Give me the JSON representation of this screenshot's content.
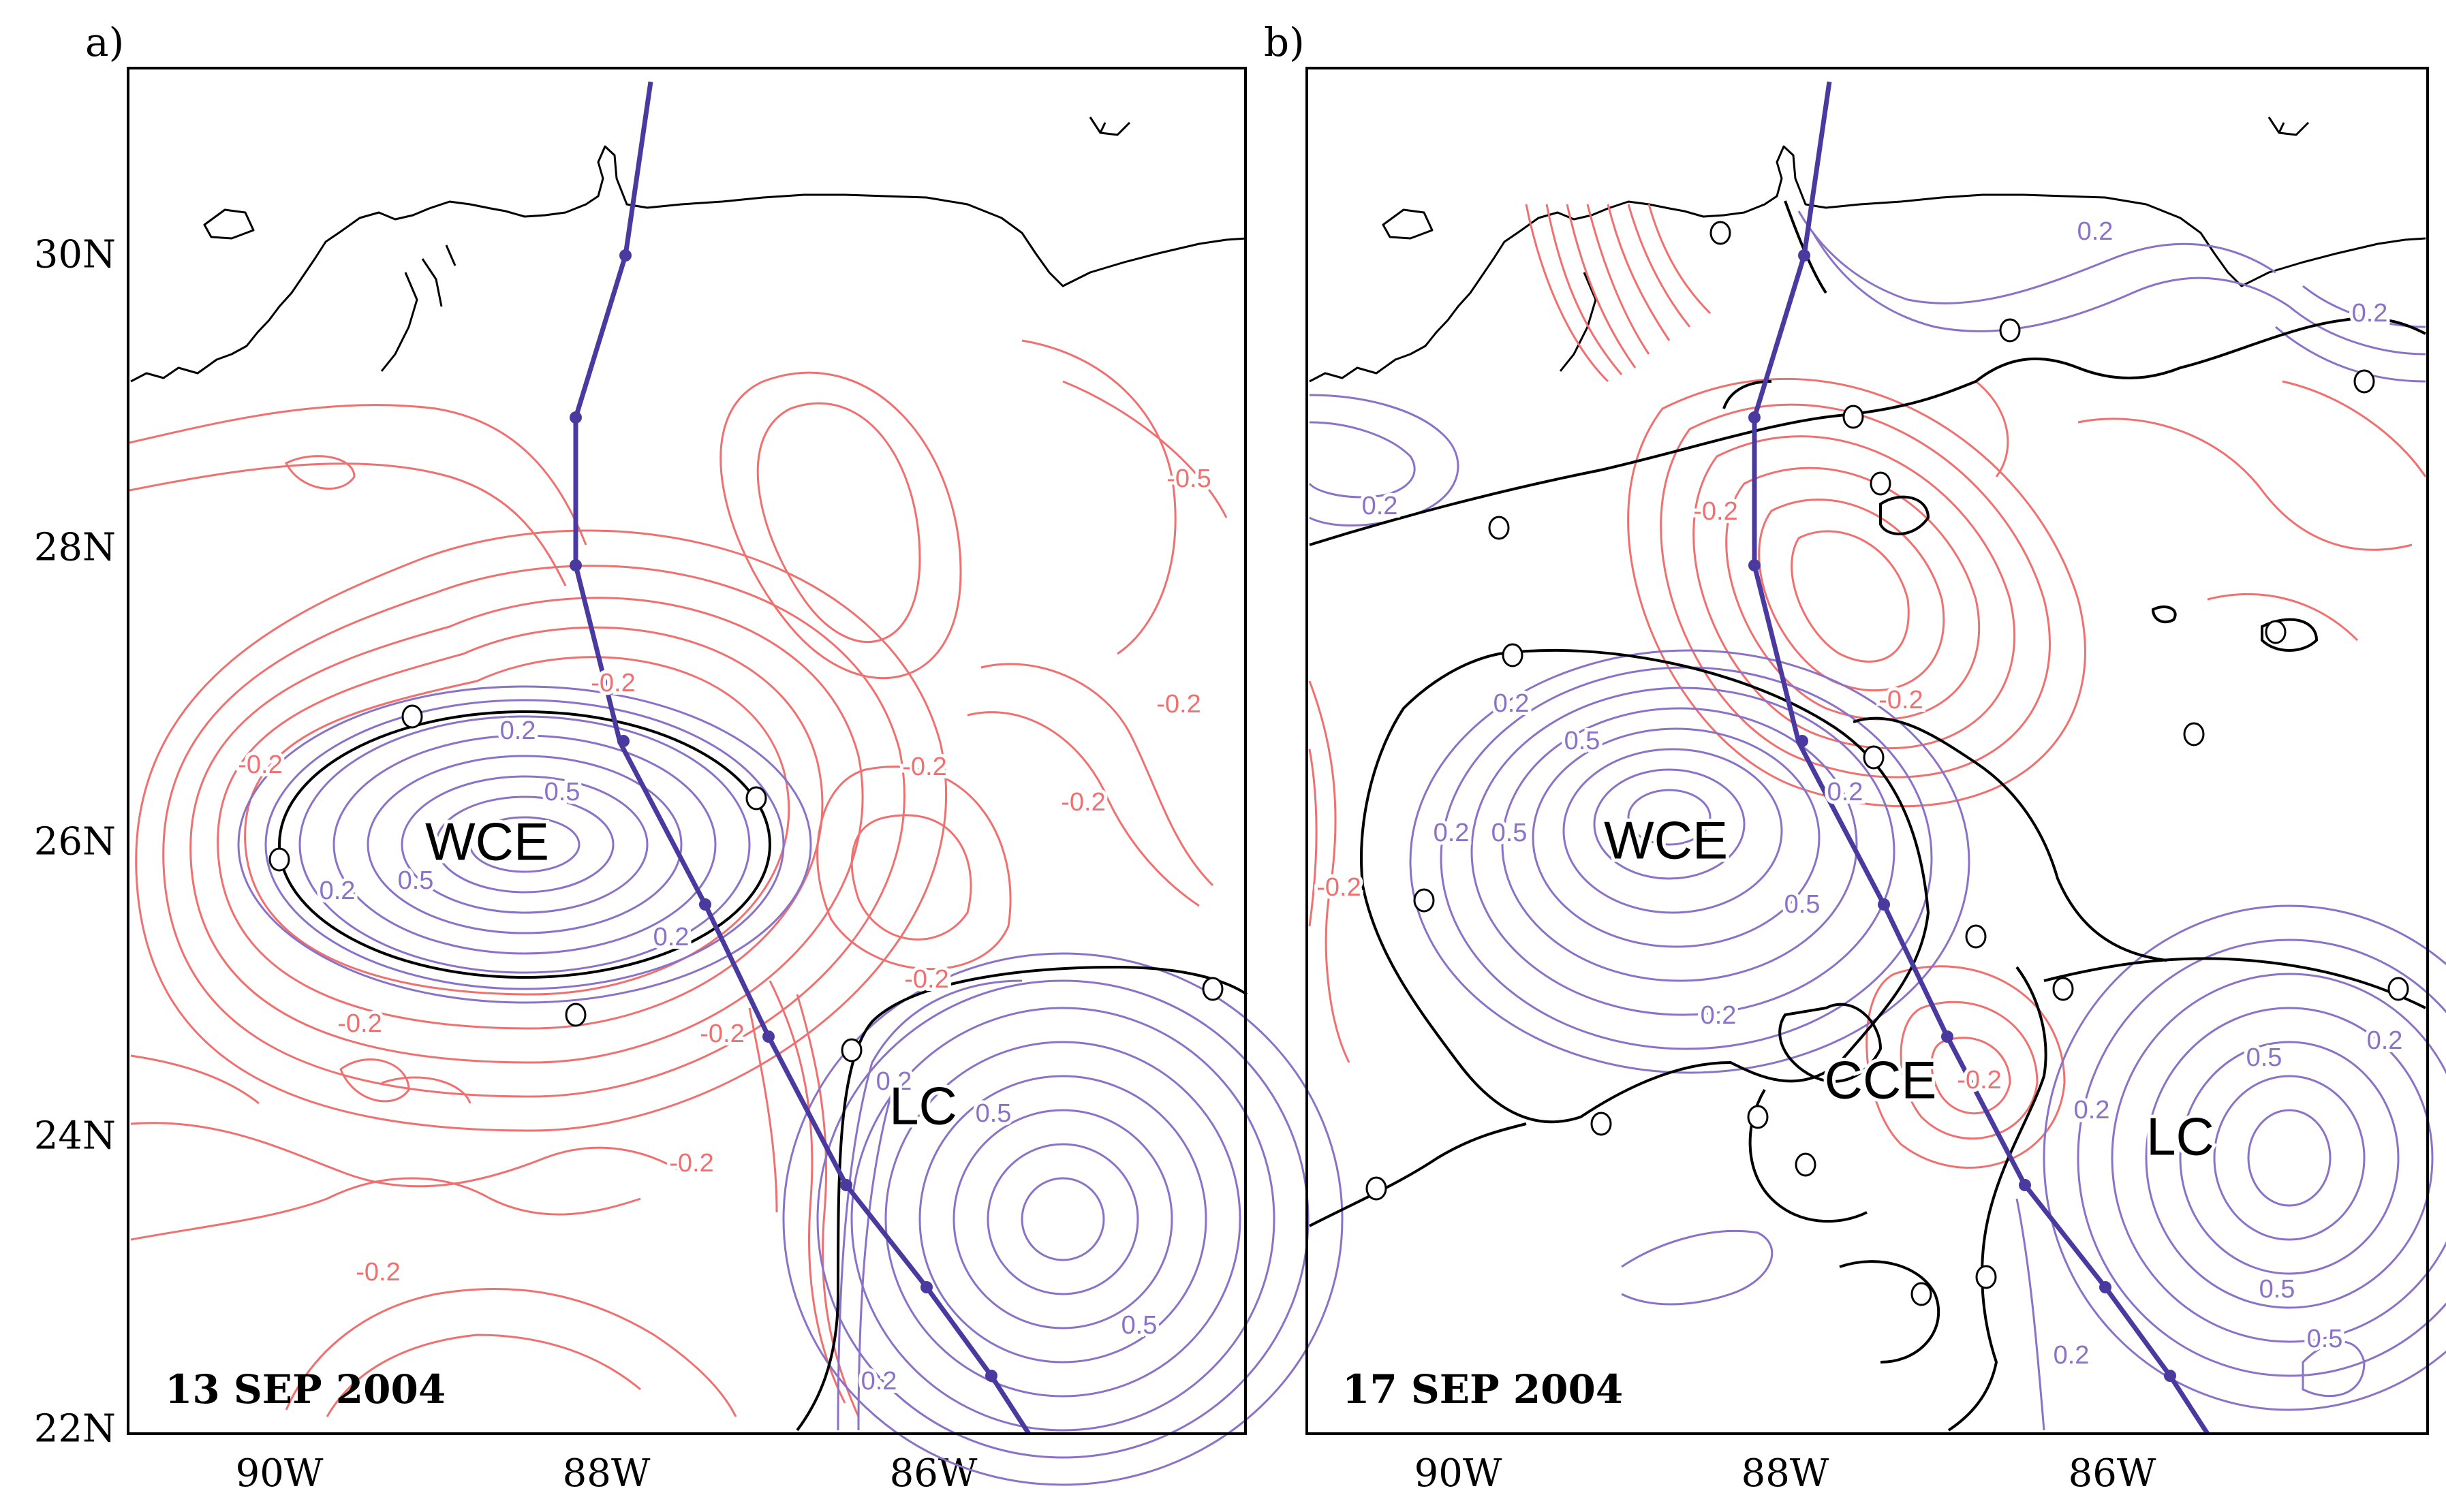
{
  "colors": {
    "positive": "#8a72c8",
    "negative": "#f07070",
    "zero": "#000000",
    "track": "#4a3aa0"
  },
  "axes": {
    "lat_ticks": [
      "30N",
      "28N",
      "26N",
      "24N",
      "22N"
    ],
    "lon_ticks": [
      "90W",
      "88W",
      "86W"
    ]
  },
  "panels": [
    {
      "letter": "a)",
      "date": "13 SEP 2004",
      "features": [
        "WCE",
        "LC"
      ],
      "contour_labels": {
        "negative": [
          "-0.2",
          "-0.2",
          "-0.2",
          "-0.2",
          "-0.2",
          "-0.2",
          "-0.2",
          "-0.2",
          "-0.2",
          "-0.5"
        ],
        "positive": [
          "0.2",
          "0.5",
          "0.2",
          "0.5",
          "0.2",
          "0.2",
          "0.5",
          "0.5",
          "0.2"
        ]
      }
    },
    {
      "letter": "b)",
      "date": "17 SEP 2004",
      "features": [
        "WCE",
        "CCE",
        "LC"
      ],
      "contour_labels": {
        "negative": [
          "-0.2",
          "-0.2",
          "-0.2",
          "-0.2"
        ],
        "positive": [
          "0.2",
          "0.2",
          "0.2",
          "0.2",
          "0.5",
          "0.2",
          "0.5",
          "0.2",
          "0.5",
          "0.2",
          "0.2",
          "0.5",
          "0.2",
          "0.5",
          "0.5",
          "0.2"
        ]
      }
    }
  ]
}
